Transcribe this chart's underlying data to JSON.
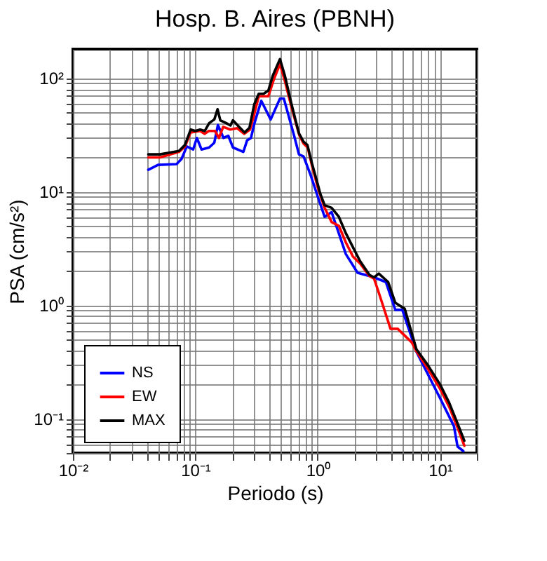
{
  "chart_data": {
    "type": "line",
    "title": "Hosp. B. Aires (PBNH)",
    "xlabel": "Periodo (s)",
    "ylabel": "PSA (cm/s²)",
    "log": "xy",
    "grid": true,
    "legend": "bottom left",
    "marker": "none",
    "line_style": "solid",
    "xlim": [
      0.01,
      20
    ],
    "ylim": [
      0.05,
      180
    ],
    "xticks": [
      {
        "value": 0.01,
        "label": "10⁻²"
      },
      {
        "value": 0.02,
        "label": null
      },
      {
        "value": 0.03,
        "label": null
      },
      {
        "value": 0.04,
        "label": null
      },
      {
        "value": 0.05,
        "label": null
      },
      {
        "value": 0.06,
        "label": null
      },
      {
        "value": 0.07,
        "label": null
      },
      {
        "value": 0.08,
        "label": null
      },
      {
        "value": 0.09,
        "label": null
      },
      {
        "value": 0.1,
        "label": "10⁻¹"
      },
      {
        "value": 0.2,
        "label": null
      },
      {
        "value": 0.3,
        "label": null
      },
      {
        "value": 0.4,
        "label": null
      },
      {
        "value": 0.5,
        "label": null
      },
      {
        "value": 0.6,
        "label": null
      },
      {
        "value": 0.7,
        "label": null
      },
      {
        "value": 0.8,
        "label": null
      },
      {
        "value": 0.9,
        "label": null
      },
      {
        "value": 1,
        "label": "10⁰"
      },
      {
        "value": 2,
        "label": null
      },
      {
        "value": 3,
        "label": null
      },
      {
        "value": 4,
        "label": null
      },
      {
        "value": 5,
        "label": null
      },
      {
        "value": 6,
        "label": null
      },
      {
        "value": 7,
        "label": null
      },
      {
        "value": 8,
        "label": null
      },
      {
        "value": 9,
        "label": null
      },
      {
        "value": 10,
        "label": "10¹"
      },
      {
        "value": 20,
        "label": null
      }
    ],
    "yticks": [
      {
        "value": 0.05,
        "label": null
      },
      {
        "value": 0.06,
        "label": null
      },
      {
        "value": 0.07,
        "label": null
      },
      {
        "value": 0.08,
        "label": null
      },
      {
        "value": 0.09,
        "label": null
      },
      {
        "value": 0.1,
        "label": "10⁻¹"
      },
      {
        "value": 0.2,
        "label": null
      },
      {
        "value": 0.3,
        "label": null
      },
      {
        "value": 0.4,
        "label": null
      },
      {
        "value": 0.5,
        "label": null
      },
      {
        "value": 0.6,
        "label": null
      },
      {
        "value": 0.7,
        "label": null
      },
      {
        "value": 0.8,
        "label": null
      },
      {
        "value": 0.9,
        "label": null
      },
      {
        "value": 1,
        "label": "10⁰"
      },
      {
        "value": 2,
        "label": null
      },
      {
        "value": 3,
        "label": null
      },
      {
        "value": 4,
        "label": null
      },
      {
        "value": 5,
        "label": null
      },
      {
        "value": 6,
        "label": null
      },
      {
        "value": 7,
        "label": null
      },
      {
        "value": 8,
        "label": null
      },
      {
        "value": 9,
        "label": null
      },
      {
        "value": 10,
        "label": "10¹"
      },
      {
        "value": 20,
        "label": null
      },
      {
        "value": 30,
        "label": null
      },
      {
        "value": 40,
        "label": null
      },
      {
        "value": 50,
        "label": null
      },
      {
        "value": 60,
        "label": null
      },
      {
        "value": 70,
        "label": null
      },
      {
        "value": 80,
        "label": null
      },
      {
        "value": 90,
        "label": null
      },
      {
        "value": 100,
        "label": "10²"
      }
    ],
    "series": [
      {
        "name": "NS",
        "color": "#0000ff",
        "x": [
          0.0413,
          0.0496,
          0.0703,
          0.0771,
          0.0852,
          0.096,
          0.103,
          0.1125,
          0.13,
          0.143,
          0.153,
          0.17,
          0.186,
          0.203,
          0.247,
          0.265,
          0.285,
          0.303,
          0.346,
          0.413,
          0.492,
          0.529,
          0.642,
          0.703,
          0.767,
          0.876,
          1.0,
          1.14,
          1.3,
          1.7,
          2.12,
          2.89,
          3.61,
          4.31,
          4.92,
          6.41,
          10.0,
          13.0,
          13.9,
          15.5
        ],
        "values": [
          15.6,
          17.2,
          17.5,
          19.4,
          25.0,
          23.5,
          29.7,
          23.5,
          24.5,
          27.0,
          38.6,
          29.7,
          31.1,
          24.5,
          22.4,
          28.3,
          29.7,
          39.4,
          63.1,
          43.2,
          66.0,
          66.0,
          31.1,
          21.3,
          20.4,
          14.0,
          9.1,
          6.0,
          6.6,
          2.82,
          1.93,
          1.76,
          1.6,
          0.91,
          0.91,
          0.39,
          0.152,
          0.086,
          0.057,
          0.052
        ]
      },
      {
        "name": "EW",
        "color": "#ff0000",
        "x": [
          0.0413,
          0.0515,
          0.0735,
          0.0824,
          0.0916,
          0.1094,
          0.1194,
          0.129,
          0.145,
          0.156,
          0.169,
          0.193,
          0.22,
          0.251,
          0.28,
          0.303,
          0.33,
          0.395,
          0.438,
          0.492,
          0.543,
          0.62,
          0.708,
          0.767,
          0.83,
          0.899,
          1.0,
          1.14,
          1.3,
          1.49,
          1.7,
          1.94,
          2.22,
          2.65,
          2.89,
          3.13,
          3.94,
          4.51,
          5.15,
          5.88,
          6.41,
          8.0,
          10.0,
          11.9,
          14.2,
          15.8
        ],
        "values": [
          20.0,
          20.0,
          22.4,
          25.0,
          33.2,
          34.2,
          32.3,
          34.2,
          34.2,
          29.7,
          37.2,
          35.2,
          36.2,
          32.3,
          35.2,
          48,
          69.2,
          69.2,
          97.2,
          133,
          91.9,
          52.2,
          31.4,
          26.5,
          24.4,
          16.9,
          11.0,
          7.2,
          5.4,
          5.0,
          3.57,
          2.69,
          2.33,
          1.81,
          1.71,
          1.33,
          0.62,
          0.62,
          0.54,
          0.47,
          0.394,
          0.273,
          0.184,
          0.127,
          0.079,
          0.058
        ]
      },
      {
        "name": "MAX",
        "color": "#000000",
        "x": [
          0.0413,
          0.0515,
          0.0671,
          0.0735,
          0.0824,
          0.0916,
          0.1,
          0.1094,
          0.1194,
          0.13,
          0.143,
          0.152,
          0.16,
          0.178,
          0.194,
          0.203,
          0.226,
          0.253,
          0.277,
          0.303,
          0.33,
          0.361,
          0.395,
          0.431,
          0.492,
          0.538,
          0.615,
          0.703,
          0.767,
          0.824,
          0.899,
          1.0,
          1.05,
          1.14,
          1.3,
          1.49,
          1.7,
          1.94,
          2.22,
          2.65,
          2.89,
          3.16,
          3.77,
          4.31,
          5.15,
          6.41,
          8.0,
          10.0,
          11.9,
          14.2,
          15.8
        ],
        "values": [
          21.3,
          21.3,
          22.4,
          22.8,
          25.8,
          35.2,
          34.2,
          35.2,
          34.2,
          40.2,
          43.2,
          53.2,
          42.5,
          40.2,
          38.3,
          42.5,
          37.5,
          33.2,
          36.5,
          58.5,
          72.7,
          72.7,
          77.6,
          106,
          147,
          106,
          57.3,
          32.6,
          27.5,
          25.8,
          17.7,
          11.7,
          9.6,
          7.6,
          7.2,
          6.0,
          4.3,
          3.25,
          2.45,
          1.85,
          1.76,
          1.9,
          1.6,
          1.05,
          0.93,
          0.41,
          0.294,
          0.201,
          0.138,
          0.086,
          0.064
        ]
      }
    ]
  }
}
